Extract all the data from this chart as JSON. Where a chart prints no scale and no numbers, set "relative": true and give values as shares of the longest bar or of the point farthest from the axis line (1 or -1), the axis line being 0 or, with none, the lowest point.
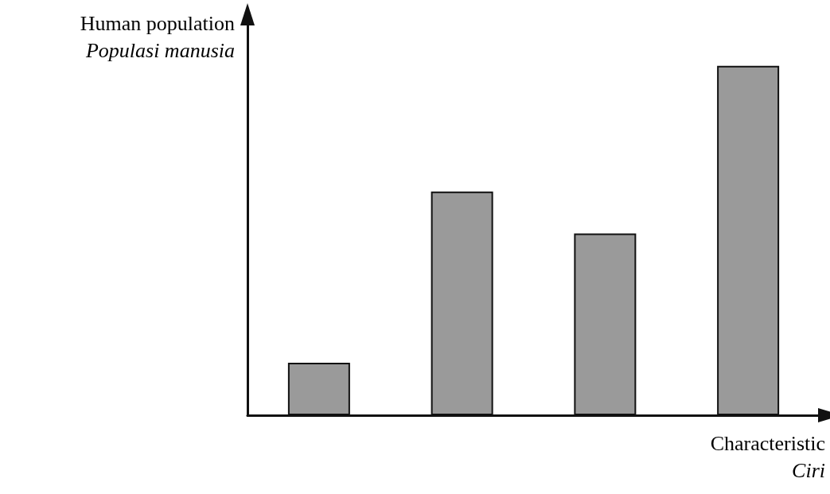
{
  "chart_data": {
    "type": "bar",
    "relative": true,
    "categories": [
      null,
      null,
      null,
      null
    ],
    "values": [
      0.15,
      0.64,
      0.52,
      1
    ],
    "color": "#9a9a9a",
    "xlabel": "Characteristic\nCiri",
    "ylabel": "Human population\nPopulasi manusia",
    "grid": false
  }
}
